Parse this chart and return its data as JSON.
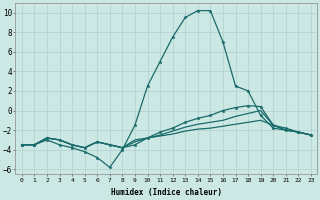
{
  "xlabel": "Humidex (Indice chaleur)",
  "xlim": [
    -0.5,
    23.5
  ],
  "ylim": [
    -6.5,
    11
  ],
  "xticks": [
    0,
    1,
    2,
    3,
    4,
    5,
    6,
    7,
    8,
    9,
    10,
    11,
    12,
    13,
    14,
    15,
    16,
    17,
    18,
    19,
    20,
    21,
    22,
    23
  ],
  "yticks": [
    -6,
    -4,
    -2,
    0,
    2,
    4,
    6,
    8,
    10
  ],
  "bg_color": "#cce8e5",
  "grid_color": "#b0d0cc",
  "line_color": "#1a6b6b",
  "curve1_x": [
    0,
    1,
    2,
    3,
    4,
    5,
    6,
    7,
    8,
    9,
    10,
    11,
    12,
    13,
    14,
    15,
    16,
    17,
    18,
    19,
    20,
    21,
    22,
    23
  ],
  "curve1_y": [
    -3.5,
    -3.5,
    -3.0,
    -3.5,
    -3.8,
    -4.2,
    -4.8,
    -5.8,
    -4.0,
    -1.5,
    2.5,
    5.0,
    7.5,
    9.5,
    10.2,
    10.2,
    7.0,
    2.5,
    2.0,
    -0.5,
    -1.8,
    -2.0,
    -2.2,
    -2.5
  ],
  "curve2_x": [
    0,
    1,
    2,
    3,
    4,
    5,
    6,
    7,
    8,
    9,
    10,
    11,
    12,
    13,
    14,
    15,
    16,
    17,
    18,
    19,
    20,
    21,
    22,
    23
  ],
  "curve2_y": [
    -3.5,
    -3.5,
    -2.8,
    -3.0,
    -3.5,
    -3.8,
    -3.2,
    -3.5,
    -3.8,
    -3.5,
    -2.8,
    -2.2,
    -1.8,
    -1.2,
    -0.8,
    -0.5,
    0.0,
    0.3,
    0.5,
    0.4,
    -1.5,
    -1.8,
    -2.2,
    -2.5
  ],
  "curve3_x": [
    0,
    1,
    2,
    3,
    4,
    5,
    6,
    7,
    8,
    9,
    10,
    11,
    12,
    13,
    14,
    15,
    16,
    17,
    18,
    19,
    20,
    21,
    22,
    23
  ],
  "curve3_y": [
    -3.5,
    -3.5,
    -2.8,
    -3.0,
    -3.5,
    -3.8,
    -3.2,
    -3.5,
    -3.8,
    -3.2,
    -2.8,
    -2.5,
    -2.1,
    -1.7,
    -1.4,
    -1.2,
    -1.0,
    -0.6,
    -0.3,
    0.0,
    -1.5,
    -2.0,
    -2.2,
    -2.5
  ],
  "curve4_x": [
    0,
    1,
    2,
    3,
    4,
    5,
    6,
    7,
    8,
    9,
    10,
    11,
    12,
    13,
    14,
    15,
    16,
    17,
    18,
    19,
    20,
    21,
    22,
    23
  ],
  "curve4_y": [
    -3.5,
    -3.5,
    -2.8,
    -3.0,
    -3.5,
    -3.8,
    -3.2,
    -3.5,
    -3.8,
    -3.0,
    -2.8,
    -2.6,
    -2.4,
    -2.1,
    -1.9,
    -1.8,
    -1.6,
    -1.4,
    -1.2,
    -1.0,
    -1.5,
    -2.0,
    -2.2,
    -2.5
  ]
}
